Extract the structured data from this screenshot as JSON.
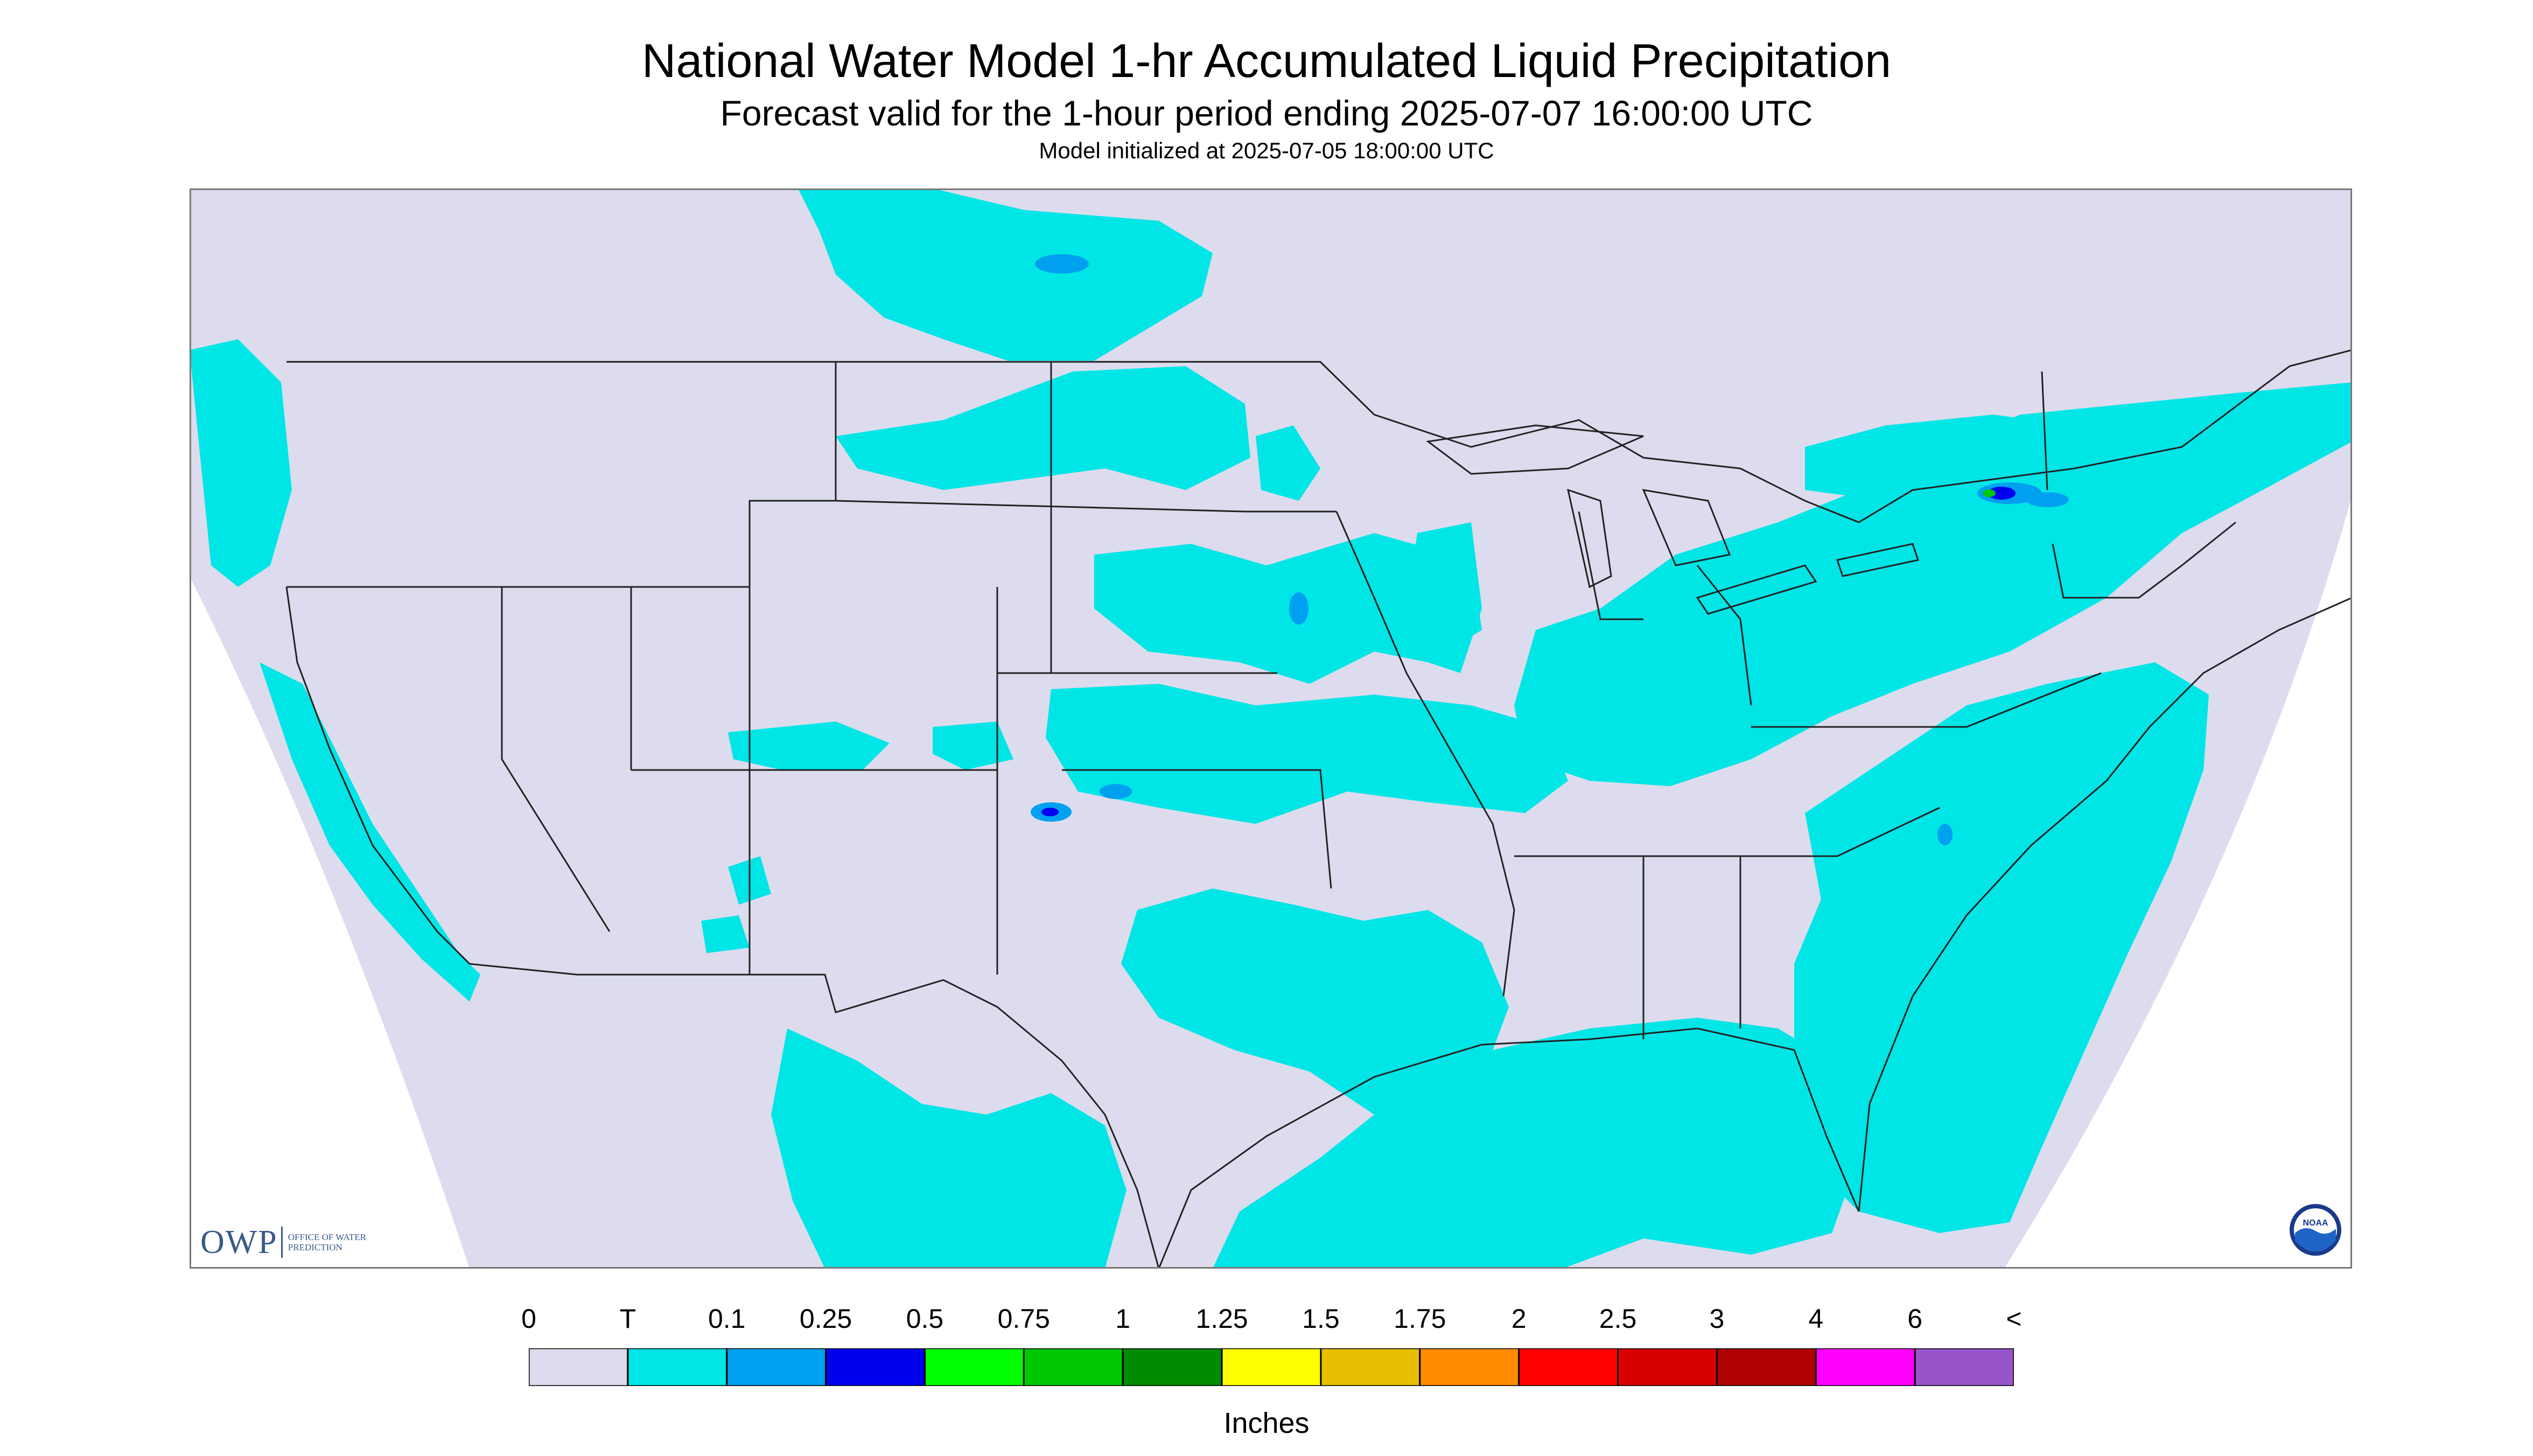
{
  "title": "National Water Model 1-hr Accumulated Liquid Precipitation",
  "subtitle": "Forecast valid for the 1-hour period ending 2025-07-07 16:00:00 UTC",
  "init_note": "Model initialized at 2025-07-05 18:00:00 UTC",
  "legend": {
    "tick_labels": [
      "0",
      "T",
      "0.1",
      "0.25",
      "0.5",
      "0.75",
      "1",
      "1.25",
      "1.5",
      "1.75",
      "2",
      "2.5",
      "3",
      "4",
      "6",
      "<"
    ],
    "colors": [
      "#dcdcee",
      "#00e5e5",
      "#00a0f0",
      "#0000f0",
      "#00ff00",
      "#00c800",
      "#008c00",
      "#ffff00",
      "#e6c000",
      "#ff8c00",
      "#ff0000",
      "#d80000",
      "#b00000",
      "#ff00ff",
      "#9855c9"
    ],
    "units": "Inches"
  },
  "map": {
    "no_precip_color": "#dcdcee",
    "precip_light_color": "#00e5e5",
    "precip_moderate_color": "#00a0f0",
    "precip_heavy_color": "#0000f0",
    "border_color": "#222222"
  },
  "logos": {
    "owp_mark": "OWP",
    "owp_text": "OFFICE OF WATER PREDICTION",
    "noaa_text": "NOAA"
  }
}
